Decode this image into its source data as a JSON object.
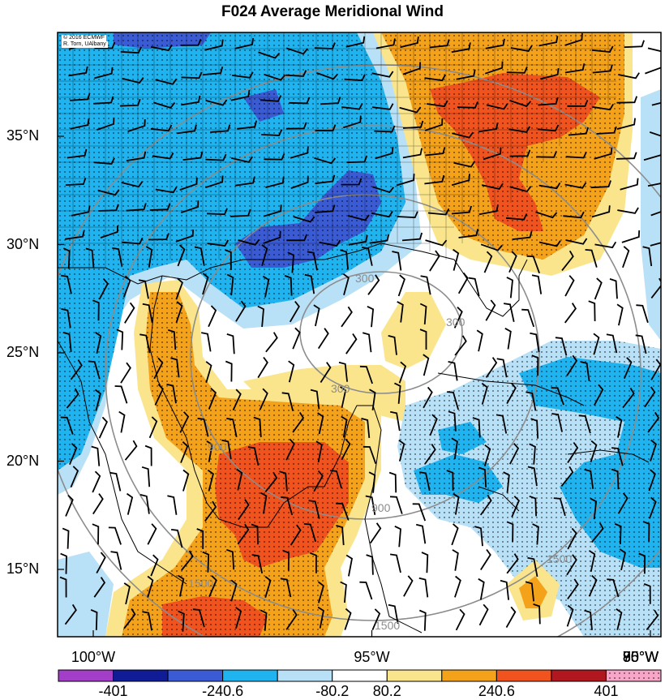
{
  "title": "F024 Average Meridional Wind",
  "credit": {
    "line1": "© 2016 ECMWF",
    "line2": "R. Torn, UAlbany"
  },
  "lat_labels": [
    {
      "text": "35°N",
      "deg": 35
    },
    {
      "text": "30°N",
      "deg": 30
    },
    {
      "text": "25°N",
      "deg": 25
    },
    {
      "text": "20°N",
      "deg": 20
    },
    {
      "text": "15°N",
      "deg": 15
    }
  ],
  "lon_labels": [
    {
      "text": "100°W",
      "deg": -100
    },
    {
      "text": "95°W",
      "deg": -95
    },
    {
      "text": "90°W",
      "deg": -90
    },
    {
      "text": "85°W",
      "deg": -85
    },
    {
      "text": "80°W",
      "deg": -80
    },
    {
      "text": "75°W",
      "deg": -75
    }
  ],
  "contour_labels": [
    "300",
    "300",
    "300",
    "900",
    "900",
    "1500",
    "1500",
    "1500"
  ],
  "colorbar": {
    "labels": [
      "-401",
      "-240.6",
      "-80.2",
      "80.2",
      "240.6",
      "401"
    ],
    "colors": [
      "#a33ec8",
      "#0f1c96",
      "#3a5bd4",
      "#1fb4f0",
      "#b8e0f6",
      "#ffffff",
      "#fae58c",
      "#f5a21b",
      "#f0531e",
      "#b0171e",
      "#f7a6c8"
    ]
  },
  "fill_colors": {
    "light_blue": "#b8e0f6",
    "blue": "#1fb4f0",
    "dark_blue": "#3a5bd4",
    "navy": "#2234a8",
    "yellow": "#fae58c",
    "orange": "#f5a21b",
    "red": "#f0531e"
  }
}
